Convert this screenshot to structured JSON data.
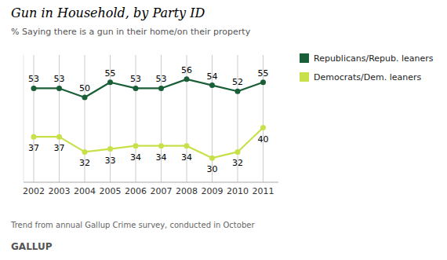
{
  "chart_data": {
    "type": "line",
    "title": "Gun in Household, by Party ID",
    "subtitle": "% Saying there is a gun in their home/on their property",
    "annotations": [
      "Trend from annual Gallup Crime survey, conducted in October",
      "GALLUP"
    ],
    "x": [
      2002,
      2003,
      2004,
      2005,
      2006,
      2007,
      2008,
      2009,
      2010,
      2011
    ],
    "series": [
      {
        "name": "Republicans/Repub. leaners",
        "color": "#1a5e38",
        "marker": "circle",
        "values": [
          53,
          53,
          50,
          55,
          53,
          53,
          56,
          54,
          52,
          55
        ]
      },
      {
        "name": "Democrats/Dem. leaners",
        "color": "#c8e04a",
        "marker": "circle",
        "values": [
          37,
          37,
          32,
          33,
          34,
          34,
          34,
          30,
          32,
          40
        ]
      }
    ],
    "xlim": [
      2001.6,
      2011.6
    ],
    "xticks": [
      2002,
      2003,
      2004,
      2005,
      2006,
      2007,
      2008,
      2009,
      2010,
      2011
    ],
    "ylim": [
      22,
      64
    ],
    "grid": "x",
    "tick_labels": "x",
    "data_labels": true,
    "legend": "right"
  }
}
